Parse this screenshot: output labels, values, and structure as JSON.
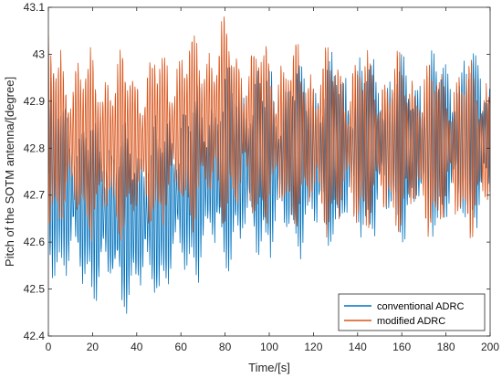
{
  "chart_data": {
    "type": "line",
    "title": "",
    "xlabel": "Time/[s]",
    "ylabel": "Pitch of the SOTM antenna/[degree]",
    "xlim": [
      0,
      200
    ],
    "ylim": [
      42.4,
      43.1
    ],
    "x_ticks": [
      "0",
      "20",
      "40",
      "60",
      "80",
      "100",
      "120",
      "140",
      "160",
      "180",
      "200"
    ],
    "y_ticks": [
      "42.4",
      "42.5",
      "42.6",
      "42.7",
      "42.8",
      "42.9",
      "43",
      "43.1"
    ],
    "grid": false,
    "legend_position": "bottom-right",
    "series": [
      {
        "name": "conventional ADRC",
        "color": "#0072BD",
        "x": [
          0,
          10,
          20,
          30,
          40,
          50,
          60,
          70,
          80,
          90,
          100,
          120,
          140,
          160,
          180,
          200
        ],
        "lower": [
          42.52,
          42.48,
          42.47,
          42.45,
          42.44,
          42.46,
          42.49,
          42.52,
          42.53,
          42.54,
          42.55,
          42.57,
          42.59,
          42.6,
          42.61,
          42.62
        ],
        "upper": [
          42.97,
          42.92,
          42.88,
          42.86,
          42.85,
          42.88,
          42.92,
          42.95,
          42.97,
          42.99,
          42.99,
          43.0,
          43.01,
          43.01,
          43.02,
          43.02
        ]
      },
      {
        "name": "modified ADRC",
        "color": "#D95319",
        "x": [
          0,
          10,
          20,
          30,
          40,
          50,
          60,
          70,
          80,
          90,
          100,
          120,
          140,
          160,
          180,
          200
        ],
        "lower": [
          42.6,
          42.6,
          42.6,
          42.59,
          42.6,
          42.61,
          42.62,
          42.62,
          42.62,
          42.62,
          42.62,
          42.61,
          42.61,
          42.61,
          42.6,
          42.6
        ],
        "upper": [
          43.05,
          43.03,
          43.02,
          43.02,
          43.02,
          43.03,
          43.05,
          43.07,
          43.1,
          43.05,
          43.04,
          43.03,
          43.02,
          43.01,
          43.0,
          43.0
        ]
      }
    ]
  }
}
